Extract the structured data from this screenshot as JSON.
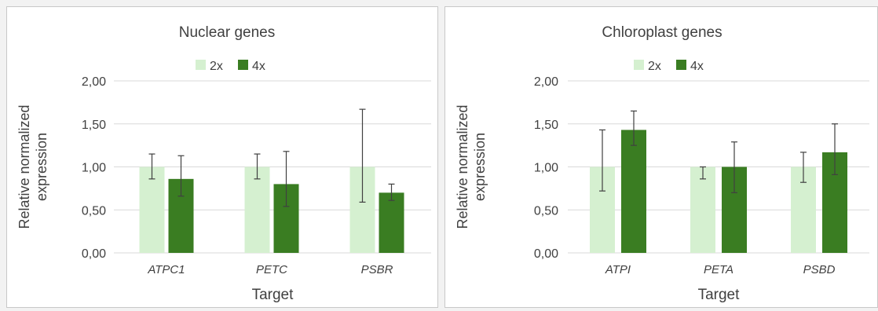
{
  "chart_data": [
    {
      "type": "bar",
      "title": "Nuclear genes",
      "xlabel": "Target",
      "ylabel": "Relative normalized expression",
      "ylabel_lines": [
        "Relative normalized",
        "expression"
      ],
      "ylim": [
        0,
        2
      ],
      "yticks": [
        "0,00",
        "0,50",
        "1,00",
        "1,50",
        "2,00"
      ],
      "grid": true,
      "legend_position": "top",
      "categories": [
        "ATPC1",
        "PETC",
        "PSBR"
      ],
      "series": [
        {
          "name": "2x",
          "color": "#d5f0d0",
          "values": [
            1.0,
            1.0,
            1.0
          ],
          "error_low": [
            0.86,
            0.86,
            0.59
          ],
          "error_high": [
            1.15,
            1.15,
            1.67
          ]
        },
        {
          "name": "4x",
          "color": "#3a7d22",
          "values": [
            0.86,
            0.8,
            0.7
          ],
          "error_low": [
            0.66,
            0.54,
            0.61
          ],
          "error_high": [
            1.13,
            1.18,
            0.8
          ]
        }
      ]
    },
    {
      "type": "bar",
      "title": "Chloroplast genes",
      "xlabel": "Target",
      "ylabel": "Relative normalized expression",
      "ylabel_lines": [
        "Relative normalized",
        "expression"
      ],
      "ylim": [
        0,
        2
      ],
      "yticks": [
        "0,00",
        "0,50",
        "1,00",
        "1,50",
        "2,00"
      ],
      "grid": true,
      "legend_position": "top",
      "categories": [
        "ATPI",
        "PETA",
        "PSBD"
      ],
      "series": [
        {
          "name": "2x",
          "color": "#d5f0d0",
          "values": [
            1.0,
            1.0,
            1.0
          ],
          "error_low": [
            0.72,
            0.86,
            0.82
          ],
          "error_high": [
            1.43,
            1.0,
            1.17
          ]
        },
        {
          "name": "4x",
          "color": "#3a7d22",
          "values": [
            1.43,
            1.0,
            1.17
          ],
          "error_low": [
            1.25,
            0.7,
            0.91
          ],
          "error_high": [
            1.65,
            1.29,
            1.5
          ]
        }
      ]
    }
  ]
}
